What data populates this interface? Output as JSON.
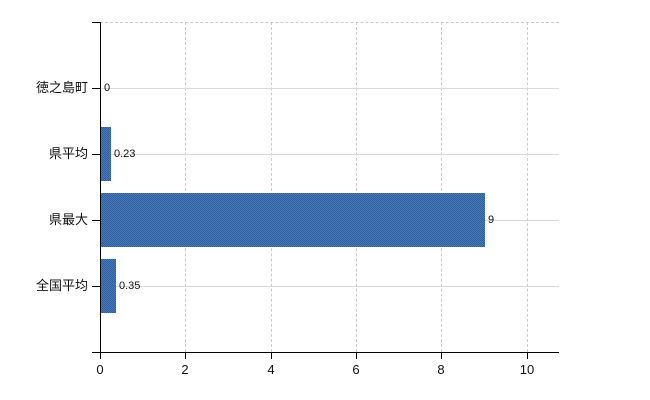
{
  "chart_data": {
    "type": "bar",
    "orientation": "horizontal",
    "title": "",
    "xlabel": "",
    "ylabel": "",
    "legend": false,
    "grid": true,
    "categories": [
      "徳之島町",
      "県平均",
      "県最大",
      "全国平均"
    ],
    "values": [
      0,
      0.23,
      9,
      0.35
    ],
    "value_labels": [
      "0",
      "0.23",
      "9",
      "0.35"
    ],
    "x_ticks": [
      0,
      2,
      4,
      6,
      8,
      10
    ],
    "x_tick_labels": [
      "0",
      "2",
      "4",
      "6",
      "8",
      "10"
    ],
    "xlim": [
      0,
      10.8
    ],
    "colors": {
      "bar": "#3d6caa",
      "bar_light": "#4a79b7",
      "bar_dark": "#2f5f9e",
      "axis": "#000000",
      "grid_horizontal": "#d9d9d9",
      "grid_vertical_dashed": "#cfc9cf",
      "plot_top_border": "#cccccc",
      "text": "#111111",
      "background": "#ffffff"
    }
  }
}
